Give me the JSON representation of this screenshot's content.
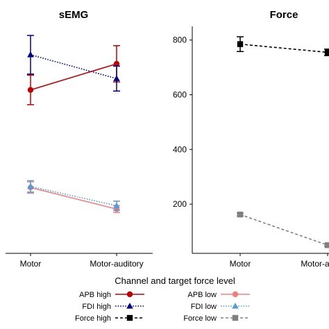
{
  "chart_data": [
    {
      "type": "line",
      "title": "sEMG",
      "xlabel": "",
      "ylabel": "",
      "categories": [
        "Motor",
        "Motor-auditory"
      ],
      "y_tick_labels_shown": false,
      "grid": false,
      "series": [
        {
          "name": "APB high",
          "color": "#c00000",
          "line": "solid",
          "marker": "circle",
          "values": [
            0.72,
            0.835
          ],
          "errors": [
            0.065,
            0.08
          ]
        },
        {
          "name": "FDI high",
          "color": "#00008b",
          "line": "dotted",
          "marker": "triangle",
          "values": [
            0.875,
            0.77
          ],
          "errors": [
            0.085,
            0.055
          ]
        },
        {
          "name": "APB low",
          "color": "#f08080",
          "line": "solid",
          "marker": "circle",
          "values": [
            0.29,
            0.195
          ],
          "errors": [
            0.025,
            0.015
          ]
        },
        {
          "name": "FDI low",
          "color": "#5b9bd5",
          "line": "dotted",
          "marker": "triangle",
          "values": [
            0.295,
            0.21
          ],
          "errors": [
            0.025,
            0.02
          ]
        }
      ],
      "ylim": [
        0,
        1
      ]
    },
    {
      "type": "line",
      "title": "Force",
      "xlabel": "",
      "ylabel": "",
      "categories": [
        "Motor",
        "Motor-auditory"
      ],
      "y_ticks": [
        200,
        400,
        600,
        800
      ],
      "grid": false,
      "series": [
        {
          "name": "Force high",
          "color": "#000000",
          "line": "dashed",
          "marker": "square",
          "values": [
            785,
            755
          ],
          "errors": [
            27,
            12
          ]
        },
        {
          "name": "Force low",
          "color": "#808080",
          "line": "dashed",
          "marker": "square",
          "values": [
            162,
            50
          ],
          "errors": [
            5,
            4
          ]
        }
      ],
      "ylim": [
        20,
        850
      ]
    }
  ],
  "legend": {
    "title": "Channel and target force level",
    "placement": "bottom",
    "entries": [
      {
        "label": "APB high",
        "color": "#c00000",
        "line": "solid",
        "marker": "circle"
      },
      {
        "label": "APB low",
        "color": "#f08080",
        "line": "solid",
        "marker": "circle"
      },
      {
        "label": "FDI high",
        "color": "#00008b",
        "line": "dotted",
        "marker": "triangle"
      },
      {
        "label": "FDI low",
        "color": "#5b9bd5",
        "line": "dotted",
        "marker": "triangle"
      },
      {
        "label": "Force high",
        "color": "#000000",
        "line": "dashed",
        "marker": "square"
      },
      {
        "label": "Force low",
        "color": "#808080",
        "line": "dashed",
        "marker": "square"
      }
    ]
  }
}
